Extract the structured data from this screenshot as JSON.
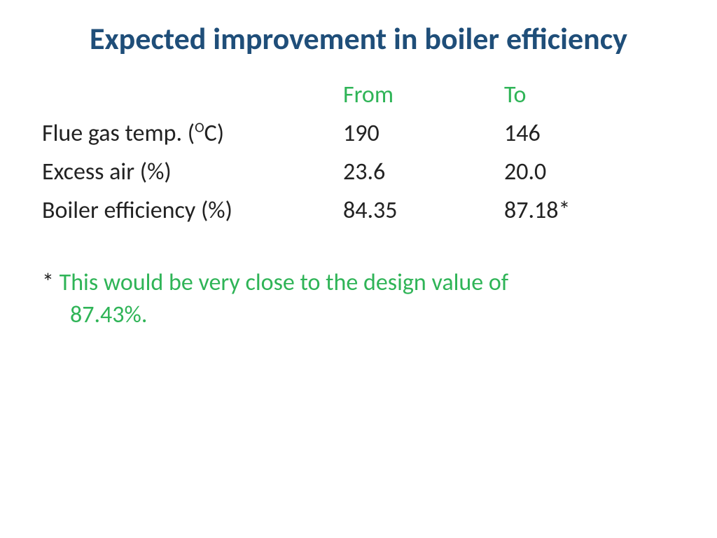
{
  "title": "Expected improvement in boiler efficiency",
  "headers": {
    "from": "From",
    "to": "To"
  },
  "rows": [
    {
      "label_pre": "Flue gas temp. (",
      "label_sup": "O",
      "label_post": "C)",
      "from": "190",
      "to": "146"
    },
    {
      "label_pre": "Excess air (%)",
      "label_sup": "",
      "label_post": "",
      "from": "23.6",
      "to": "20.0"
    },
    {
      "label_pre": "Boiler efficiency (%)",
      "label_sup": "",
      "label_post": "",
      "from": "84.35",
      "to": "87.18*"
    }
  ],
  "footnote": {
    "asterisk": "* ",
    "line1": "This would be very close to the design value of",
    "line2": "87.43%."
  },
  "colors": {
    "title": "#1f4e79",
    "body": "#222222",
    "accent": "#2fb457",
    "background": "#ffffff"
  },
  "typography": {
    "title_fontsize": 44,
    "body_fontsize": 34,
    "font_family": "Calibri"
  }
}
